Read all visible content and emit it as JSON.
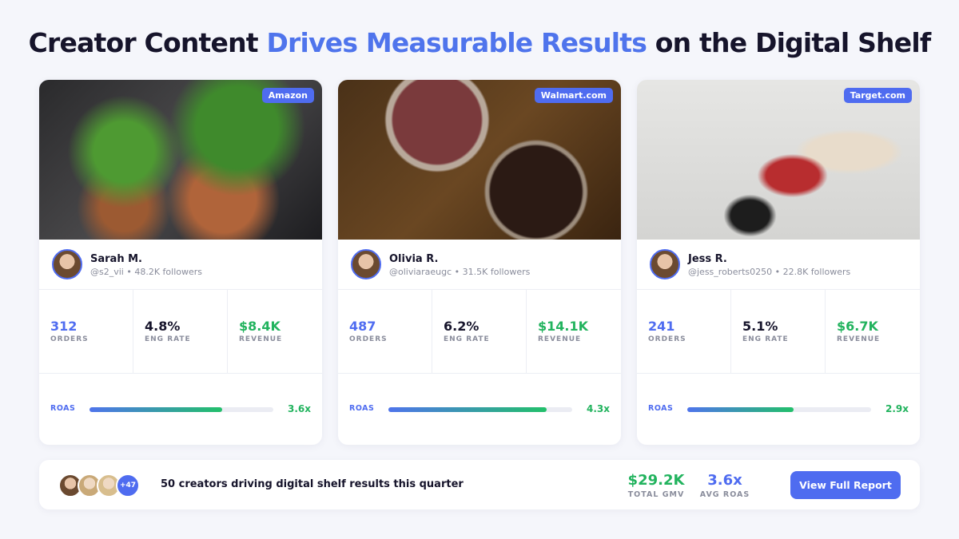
{
  "header": {
    "title_start": "Creator Content ",
    "title_highlight": "Drives Measurable Results",
    "title_end": " on the Digital Shelf"
  },
  "roas_lim": [
    0,
    5
  ],
  "cards": [
    {
      "platform": "Amazon",
      "name": "Sarah M.",
      "handle": "@s2_vii",
      "followers": "48.2K followers",
      "stats": [
        {
          "value": "312",
          "label": "ORDERS"
        },
        {
          "value": "4.8%",
          "label": "ENG RATE"
        },
        {
          "value": "$8.4K",
          "label": "REVENUE"
        }
      ],
      "roas_label": "ROAS",
      "roas": {
        "value": 3.6,
        "label": "3.6x"
      }
    },
    {
      "platform": "Walmart.com",
      "name": "Olivia R.",
      "handle": "@oliviaraeugc",
      "followers": "31.5K followers",
      "stats": [
        {
          "value": "487",
          "label": "ORDERS"
        },
        {
          "value": "6.2%",
          "label": "ENG RATE"
        },
        {
          "value": "$14.1K",
          "label": "REVENUE"
        }
      ],
      "roas_label": "ROAS",
      "roas": {
        "value": 4.3,
        "label": "4.3x"
      }
    },
    {
      "platform": "Target.com",
      "name": "Jess R.",
      "handle": "@jess_roberts0250",
      "followers": "22.8K followers",
      "stats": [
        {
          "value": "241",
          "label": "ORDERS"
        },
        {
          "value": "5.1%",
          "label": "ENG RATE"
        },
        {
          "value": "$6.7K",
          "label": "REVENUE"
        }
      ],
      "roas_label": "ROAS",
      "roas": {
        "value": 2.9,
        "label": "2.9x"
      }
    }
  ],
  "footer": {
    "more": "+47",
    "text": "50 creators driving digital shelf results this quarter",
    "gmv": {
      "value": "$29.2K",
      "label": "TOTAL GMV"
    },
    "avg_roas": {
      "value": "3.6x",
      "label": "AVG ROAS"
    },
    "button": "View Full Report"
  }
}
